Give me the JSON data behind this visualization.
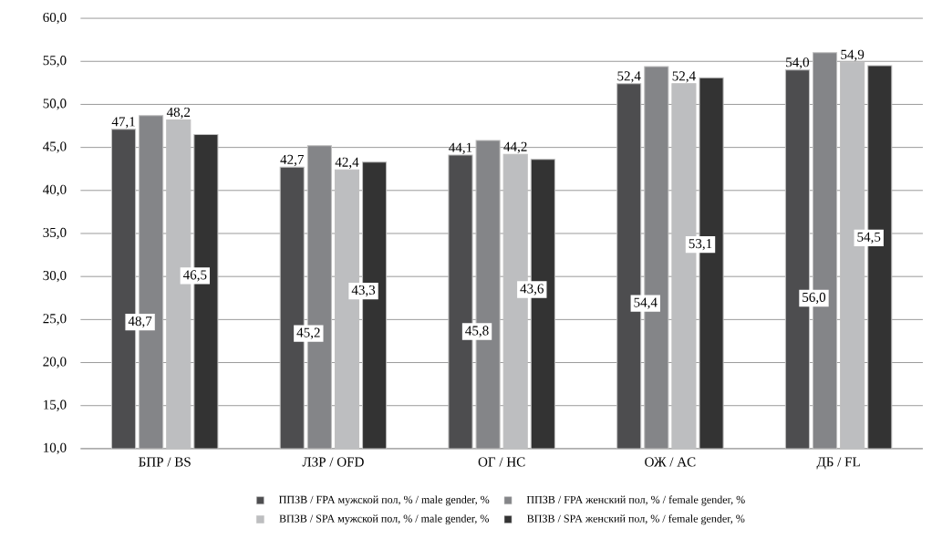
{
  "chart_data": {
    "type": "bar",
    "categories": [
      "БПР / BS",
      "ЛЗР / OFD",
      "ОГ / HC",
      "ОЖ / AC",
      "ДБ / FL"
    ],
    "series": [
      {
        "name": "ППЗВ / FPA мужской пол, % / male gender, %",
        "color": "#4d4d4f",
        "values": [
          47.1,
          42.7,
          44.1,
          52.4,
          54.0
        ],
        "value_labels": [
          "47,1",
          "42,7",
          "44,1",
          "52,4",
          "54,0"
        ]
      },
      {
        "name": "ППЗВ / FPA женский пол, % / female gender, %",
        "color": "#848588",
        "values": [
          48.7,
          45.2,
          45.8,
          54.4,
          56.0
        ],
        "value_labels": [
          "48,7",
          "45,2",
          "45,8",
          "54,4",
          "56,0"
        ]
      },
      {
        "name": "ВПЗВ / SPA мужской пол, % / male gender, %",
        "color": "#bdbec0",
        "values": [
          48.2,
          42.4,
          44.2,
          52.4,
          54.9
        ],
        "value_labels": [
          "48,2",
          "42,4",
          "44,2",
          "52,4",
          "54,9"
        ]
      },
      {
        "name": "ВПЗВ / SPA женский пол, % / female gender, %",
        "color": "#333333",
        "values": [
          46.5,
          43.3,
          43.6,
          53.1,
          54.5
        ],
        "value_labels": [
          "46,5",
          "43,3",
          "43,6",
          "53,1",
          "54,5"
        ]
      }
    ],
    "ylim": [
      10,
      60
    ],
    "yticks": [
      {
        "value": 10,
        "label": "10,0"
      },
      {
        "value": 15,
        "label": "15,0"
      },
      {
        "value": 20,
        "label": "20,0"
      },
      {
        "value": 25,
        "label": "25,0"
      },
      {
        "value": 30,
        "label": "30,0"
      },
      {
        "value": 35,
        "label": "35,0"
      },
      {
        "value": 40,
        "label": "40,0"
      },
      {
        "value": 45,
        "label": "45,0"
      },
      {
        "value": 50,
        "label": "50,0"
      },
      {
        "value": 55,
        "label": "55,0"
      },
      {
        "value": 60,
        "label": "60,0"
      }
    ],
    "grid": "y",
    "legend": "bottom"
  }
}
